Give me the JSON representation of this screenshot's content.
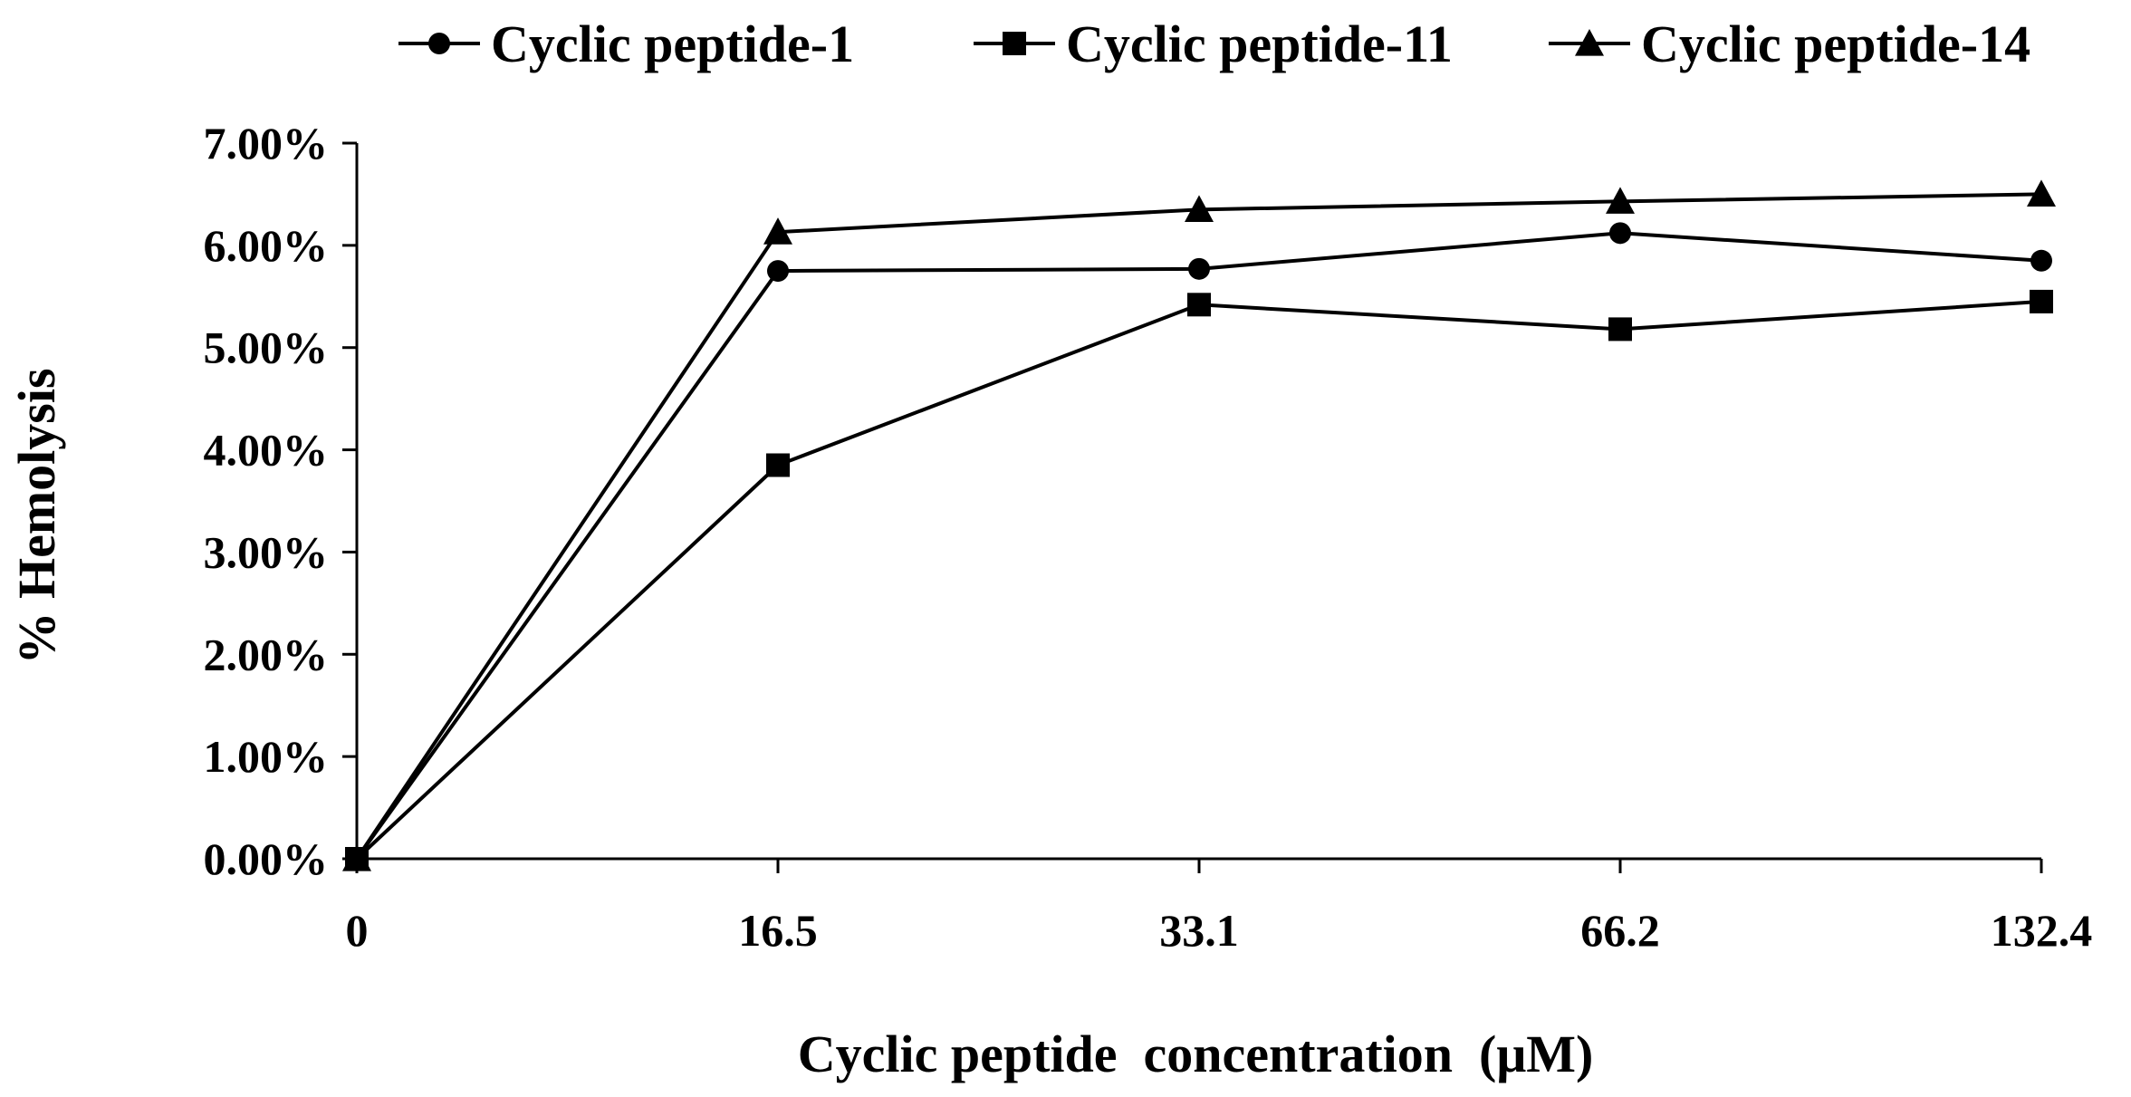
{
  "chart_data": {
    "type": "line",
    "title": "",
    "xlabel": "Cyclic peptide  concentration  (μM)",
    "ylabel": "% Hemolysis",
    "categories": [
      "0",
      "16.5",
      "33.1",
      "66.2",
      "132.4"
    ],
    "ylim": [
      0,
      7
    ],
    "yticks": [
      0,
      1,
      2,
      3,
      4,
      5,
      6,
      7
    ],
    "ytick_labels": [
      "0.00%",
      "1.00%",
      "2.00%",
      "3.00%",
      "4.00%",
      "5.00%",
      "6.00%",
      "7.00%"
    ],
    "grid": false,
    "legend_position": "top",
    "series": [
      {
        "name": "Cyclic peptide-1",
        "marker": "circle",
        "color": "#000000",
        "values": [
          0,
          5.75,
          5.77,
          6.12,
          5.85
        ]
      },
      {
        "name": "Cyclic peptide-11",
        "marker": "square",
        "color": "#000000",
        "values": [
          0,
          3.85,
          5.42,
          5.18,
          5.45
        ]
      },
      {
        "name": "Cyclic peptide-14",
        "marker": "triangle",
        "color": "#000000",
        "values": [
          0,
          6.13,
          6.35,
          6.43,
          6.5
        ]
      }
    ]
  }
}
